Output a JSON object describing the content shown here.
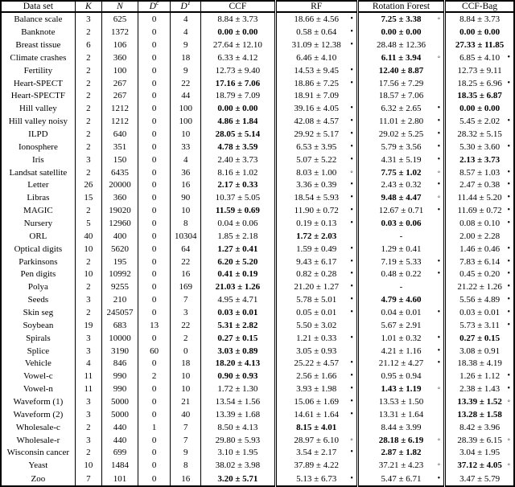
{
  "header": {
    "dataset": "Data set",
    "k": "K",
    "n": "N",
    "dc": {
      "base": "D",
      "sup": "c"
    },
    "dt": {
      "base": "D",
      "sup": "T"
    },
    "ccf": "CCF",
    "rf": "RF",
    "rotation_forest": "Rotation Forest",
    "ccf_bag": "CCF-Bag"
  },
  "markers": {
    "dot": "•",
    "circ": "◦"
  },
  "colors": {
    "text": "#000000",
    "background": "#ffffff",
    "border": "#000000"
  },
  "legend_note": {
    "dot_meaning": "filled-dot-marker",
    "circ_meaning": "open-circle-marker"
  },
  "rows": [
    [
      "Balance scale",
      "3",
      "625",
      "0",
      "4",
      [
        "8.84 ± 3.73",
        0,
        ""
      ],
      [
        "18.66 ± 4.56",
        0,
        "dot"
      ],
      [
        "7.25 ± 3.38",
        1,
        "circ"
      ],
      [
        "8.84 ± 3.73",
        0,
        ""
      ]
    ],
    [
      "Banknote",
      "2",
      "1372",
      "0",
      "4",
      [
        "0.00 ± 0.00",
        1,
        ""
      ],
      [
        "0.58 ± 0.64",
        0,
        "dot"
      ],
      [
        "0.00 ± 0.00",
        1,
        ""
      ],
      [
        "0.00 ± 0.00",
        1,
        ""
      ]
    ],
    [
      "Breast tissue",
      "6",
      "106",
      "0",
      "9",
      [
        "27.64 ± 12.10",
        0,
        ""
      ],
      [
        "31.09 ± 12.38",
        0,
        "dot"
      ],
      [
        "28.48 ± 12.36",
        0,
        ""
      ],
      [
        "27.33 ± 11.85",
        1,
        ""
      ]
    ],
    [
      "Climate crashes",
      "2",
      "360",
      "0",
      "18",
      [
        "6.33 ± 4.12",
        0,
        ""
      ],
      [
        "6.46 ± 4.10",
        0,
        ""
      ],
      [
        "6.11 ± 3.94",
        1,
        "circ"
      ],
      [
        "6.85 ± 4.10",
        0,
        "dot"
      ]
    ],
    [
      "Fertility",
      "2",
      "100",
      "0",
      "9",
      [
        "12.73 ± 9.40",
        0,
        ""
      ],
      [
        "14.53 ± 9.45",
        0,
        "dot"
      ],
      [
        "12.40 ± 8.87",
        1,
        ""
      ],
      [
        "12.73 ± 9.11",
        0,
        ""
      ]
    ],
    [
      "Heart-SPECT",
      "2",
      "267",
      "0",
      "22",
      [
        "17.16 ± 7.06",
        1,
        ""
      ],
      [
        "18.86 ± 7.25",
        0,
        "dot"
      ],
      [
        "17.56 ± 7.29",
        0,
        ""
      ],
      [
        "18.25 ± 6.96",
        0,
        "dot"
      ]
    ],
    [
      "Heart-SPECTF",
      "2",
      "267",
      "0",
      "44",
      [
        "18.79 ± 7.09",
        0,
        ""
      ],
      [
        "18.91 ± 7.09",
        0,
        ""
      ],
      [
        "18.57 ± 7.06",
        0,
        ""
      ],
      [
        "18.35 ± 6.87",
        1,
        ""
      ]
    ],
    [
      "Hill valley",
      "2",
      "1212",
      "0",
      "100",
      [
        "0.00 ± 0.00",
        1,
        ""
      ],
      [
        "39.16 ± 4.05",
        0,
        "dot"
      ],
      [
        "6.32 ± 2.65",
        0,
        "dot"
      ],
      [
        "0.00 ± 0.00",
        1,
        ""
      ]
    ],
    [
      "Hill valley noisy",
      "2",
      "1212",
      "0",
      "100",
      [
        "4.86 ± 1.84",
        1,
        ""
      ],
      [
        "42.08 ± 4.57",
        0,
        "dot"
      ],
      [
        "11.01 ± 2.80",
        0,
        "dot"
      ],
      [
        "5.45 ± 2.02",
        0,
        "dot"
      ]
    ],
    [
      "ILPD",
      "2",
      "640",
      "0",
      "10",
      [
        "28.05 ± 5.14",
        1,
        ""
      ],
      [
        "29.92 ± 5.17",
        0,
        "dot"
      ],
      [
        "29.02 ± 5.25",
        0,
        "dot"
      ],
      [
        "28.32 ± 5.15",
        0,
        ""
      ]
    ],
    [
      "Ionosphere",
      "2",
      "351",
      "0",
      "33",
      [
        "4.78 ± 3.59",
        1,
        ""
      ],
      [
        "6.53 ± 3.95",
        0,
        "dot"
      ],
      [
        "5.79 ± 3.56",
        0,
        "dot"
      ],
      [
        "5.30 ± 3.60",
        0,
        "dot"
      ]
    ],
    [
      "Iris",
      "3",
      "150",
      "0",
      "4",
      [
        "2.40 ± 3.73",
        0,
        ""
      ],
      [
        "5.07 ± 5.22",
        0,
        "dot"
      ],
      [
        "4.31 ± 5.19",
        0,
        "dot"
      ],
      [
        "2.13 ± 3.73",
        1,
        ""
      ]
    ],
    [
      "Landsat satellite",
      "2",
      "6435",
      "0",
      "36",
      [
        "8.16 ± 1.02",
        0,
        ""
      ],
      [
        "8.03 ± 1.00",
        0,
        "circ"
      ],
      [
        "7.75 ± 1.02",
        1,
        "circ"
      ],
      [
        "8.57 ± 1.03",
        0,
        "dot"
      ]
    ],
    [
      "Letter",
      "26",
      "20000",
      "0",
      "16",
      [
        "2.17 ± 0.33",
        1,
        ""
      ],
      [
        "3.36 ± 0.39",
        0,
        "dot"
      ],
      [
        "2.43 ± 0.32",
        0,
        "dot"
      ],
      [
        "2.47 ± 0.38",
        0,
        "dot"
      ]
    ],
    [
      "Libras",
      "15",
      "360",
      "0",
      "90",
      [
        "10.37 ± 5.05",
        0,
        ""
      ],
      [
        "18.54 ± 5.93",
        0,
        "dot"
      ],
      [
        "9.48 ± 4.47",
        1,
        "circ"
      ],
      [
        "11.44 ± 5.20",
        0,
        "dot"
      ]
    ],
    [
      "MAGIC",
      "2",
      "19020",
      "0",
      "10",
      [
        "11.59 ± 0.69",
        1,
        ""
      ],
      [
        "11.90 ± 0.72",
        0,
        "dot"
      ],
      [
        "12.67 ± 0.71",
        0,
        "dot"
      ],
      [
        "11.69 ± 0.72",
        0,
        "dot"
      ]
    ],
    [
      "Nursery",
      "5",
      "12960",
      "0",
      "8",
      [
        "0.04 ± 0.06",
        0,
        ""
      ],
      [
        "0.19 ± 0.13",
        0,
        "dot"
      ],
      [
        "0.03 ± 0.06",
        1,
        ""
      ],
      [
        "0.08 ± 0.10",
        0,
        "dot"
      ]
    ],
    [
      "ORL",
      "40",
      "400",
      "0",
      "10304",
      [
        "1.85 ± 2.18",
        0,
        ""
      ],
      [
        "1.72 ± 2.03",
        1,
        ""
      ],
      [
        "-",
        0,
        ""
      ],
      [
        "2.00 ± 2.28",
        0,
        ""
      ]
    ],
    [
      "Optical digits",
      "10",
      "5620",
      "0",
      "64",
      [
        "1.27 ± 0.41",
        1,
        ""
      ],
      [
        "1.59 ± 0.49",
        0,
        "dot"
      ],
      [
        "1.29 ± 0.41",
        0,
        ""
      ],
      [
        "1.46 ± 0.46",
        0,
        "dot"
      ]
    ],
    [
      "Parkinsons",
      "2",
      "195",
      "0",
      "22",
      [
        "6.20 ± 5.20",
        1,
        ""
      ],
      [
        "9.43 ± 6.17",
        0,
        "dot"
      ],
      [
        "7.19 ± 5.33",
        0,
        "dot"
      ],
      [
        "7.83 ± 6.14",
        0,
        "dot"
      ]
    ],
    [
      "Pen digits",
      "10",
      "10992",
      "0",
      "16",
      [
        "0.41 ± 0.19",
        1,
        ""
      ],
      [
        "0.82 ± 0.28",
        0,
        "dot"
      ],
      [
        "0.48 ± 0.22",
        0,
        "dot"
      ],
      [
        "0.45 ± 0.20",
        0,
        "dot"
      ]
    ],
    [
      "Polya",
      "2",
      "9255",
      "0",
      "169",
      [
        "21.03 ± 1.26",
        1,
        ""
      ],
      [
        "21.20 ± 1.27",
        0,
        "dot"
      ],
      [
        "-",
        0,
        ""
      ],
      [
        "21.22 ± 1.26",
        0,
        "dot"
      ]
    ],
    [
      "Seeds",
      "3",
      "210",
      "0",
      "7",
      [
        "4.95 ± 4.71",
        0,
        ""
      ],
      [
        "5.78 ± 5.01",
        0,
        "dot"
      ],
      [
        "4.79 ± 4.60",
        1,
        ""
      ],
      [
        "5.56 ± 4.89",
        0,
        "dot"
      ]
    ],
    [
      "Skin seg",
      "2",
      "245057",
      "0",
      "3",
      [
        "0.03 ± 0.01",
        1,
        ""
      ],
      [
        "0.05 ± 0.01",
        0,
        "dot"
      ],
      [
        "0.04 ± 0.01",
        0,
        "dot"
      ],
      [
        "0.03 ± 0.01",
        0,
        "dot"
      ]
    ],
    [
      "Soybean",
      "19",
      "683",
      "13",
      "22",
      [
        "5.31 ± 2.82",
        1,
        ""
      ],
      [
        "5.50 ± 3.02",
        0,
        ""
      ],
      [
        "5.67 ± 2.91",
        0,
        ""
      ],
      [
        "5.73 ± 3.11",
        0,
        "dot"
      ]
    ],
    [
      "Spirals",
      "3",
      "10000",
      "0",
      "2",
      [
        "0.27 ± 0.15",
        1,
        ""
      ],
      [
        "1.21 ± 0.33",
        0,
        "dot"
      ],
      [
        "1.01 ± 0.32",
        0,
        "dot"
      ],
      [
        "0.27 ± 0.15",
        1,
        ""
      ]
    ],
    [
      "Splice",
      "3",
      "3190",
      "60",
      "0",
      [
        "3.03 ± 0.89",
        1,
        ""
      ],
      [
        "3.05 ± 0.93",
        0,
        ""
      ],
      [
        "4.21 ± 1.16",
        0,
        "dot"
      ],
      [
        "3.08 ± 0.91",
        0,
        ""
      ]
    ],
    [
      "Vehicle",
      "4",
      "846",
      "0",
      "18",
      [
        "18.20 ± 4.13",
        1,
        ""
      ],
      [
        "25.22 ± 4.57",
        0,
        "dot"
      ],
      [
        "21.12 ± 4.27",
        0,
        "dot"
      ],
      [
        "18.38 ± 4.19",
        0,
        ""
      ]
    ],
    [
      "Vowel-c",
      "11",
      "990",
      "2",
      "10",
      [
        "0.90 ± 0.93",
        1,
        ""
      ],
      [
        "2.56 ± 1.66",
        0,
        "dot"
      ],
      [
        "0.95 ± 0.94",
        0,
        ""
      ],
      [
        "1.26 ± 1.12",
        0,
        "dot"
      ]
    ],
    [
      "Vowel-n",
      "11",
      "990",
      "0",
      "10",
      [
        "1.72 ± 1.30",
        0,
        ""
      ],
      [
        "3.93 ± 1.98",
        0,
        "dot"
      ],
      [
        "1.43 ± 1.19",
        1,
        "circ"
      ],
      [
        "2.38 ± 1.43",
        0,
        "dot"
      ]
    ],
    [
      "Waveform (1)",
      "3",
      "5000",
      "0",
      "21",
      [
        "13.54 ± 1.56",
        0,
        ""
      ],
      [
        "15.06 ± 1.69",
        0,
        "dot"
      ],
      [
        "13.53 ± 1.50",
        0,
        ""
      ],
      [
        "13.39 ± 1.52",
        1,
        "circ"
      ]
    ],
    [
      "Waveform (2)",
      "3",
      "5000",
      "0",
      "40",
      [
        "13.39 ± 1.68",
        0,
        ""
      ],
      [
        "14.61 ± 1.64",
        0,
        "dot"
      ],
      [
        "13.31 ± 1.64",
        0,
        ""
      ],
      [
        "13.28 ± 1.58",
        1,
        ""
      ]
    ],
    [
      "Wholesale-c",
      "2",
      "440",
      "1",
      "7",
      [
        "8.50 ± 4.13",
        0,
        ""
      ],
      [
        "8.15 ± 4.01",
        1,
        ""
      ],
      [
        "8.44 ± 3.99",
        0,
        ""
      ],
      [
        "8.42 ± 3.96",
        0,
        ""
      ]
    ],
    [
      "Wholesale-r",
      "3",
      "440",
      "0",
      "7",
      [
        "29.80 ± 5.93",
        0,
        ""
      ],
      [
        "28.97 ± 6.10",
        0,
        "circ"
      ],
      [
        "28.18 ± 6.19",
        1,
        "circ"
      ],
      [
        "28.39 ± 6.15",
        0,
        "circ"
      ]
    ],
    [
      "Wisconsin cancer",
      "2",
      "699",
      "0",
      "9",
      [
        "3.10 ± 1.95",
        0,
        ""
      ],
      [
        "3.54 ± 2.17",
        0,
        "dot"
      ],
      [
        "2.87 ± 1.82",
        1,
        ""
      ],
      [
        "3.04 ± 1.95",
        0,
        ""
      ]
    ],
    [
      "Yeast",
      "10",
      "1484",
      "0",
      "8",
      [
        "38.02 ± 3.98",
        0,
        ""
      ],
      [
        "37.89 ± 4.22",
        0,
        ""
      ],
      [
        "37.21 ± 4.23",
        0,
        "circ"
      ],
      [
        "37.12 ± 4.05",
        1,
        "circ"
      ]
    ],
    [
      "Zoo",
      "7",
      "101",
      "0",
      "16",
      [
        "3.20 ± 5.71",
        1,
        ""
      ],
      [
        "5.13 ± 6.73",
        0,
        "dot"
      ],
      [
        "5.47 ± 6.71",
        0,
        "dot"
      ],
      [
        "3.47 ± 5.79",
        0,
        ""
      ]
    ]
  ]
}
